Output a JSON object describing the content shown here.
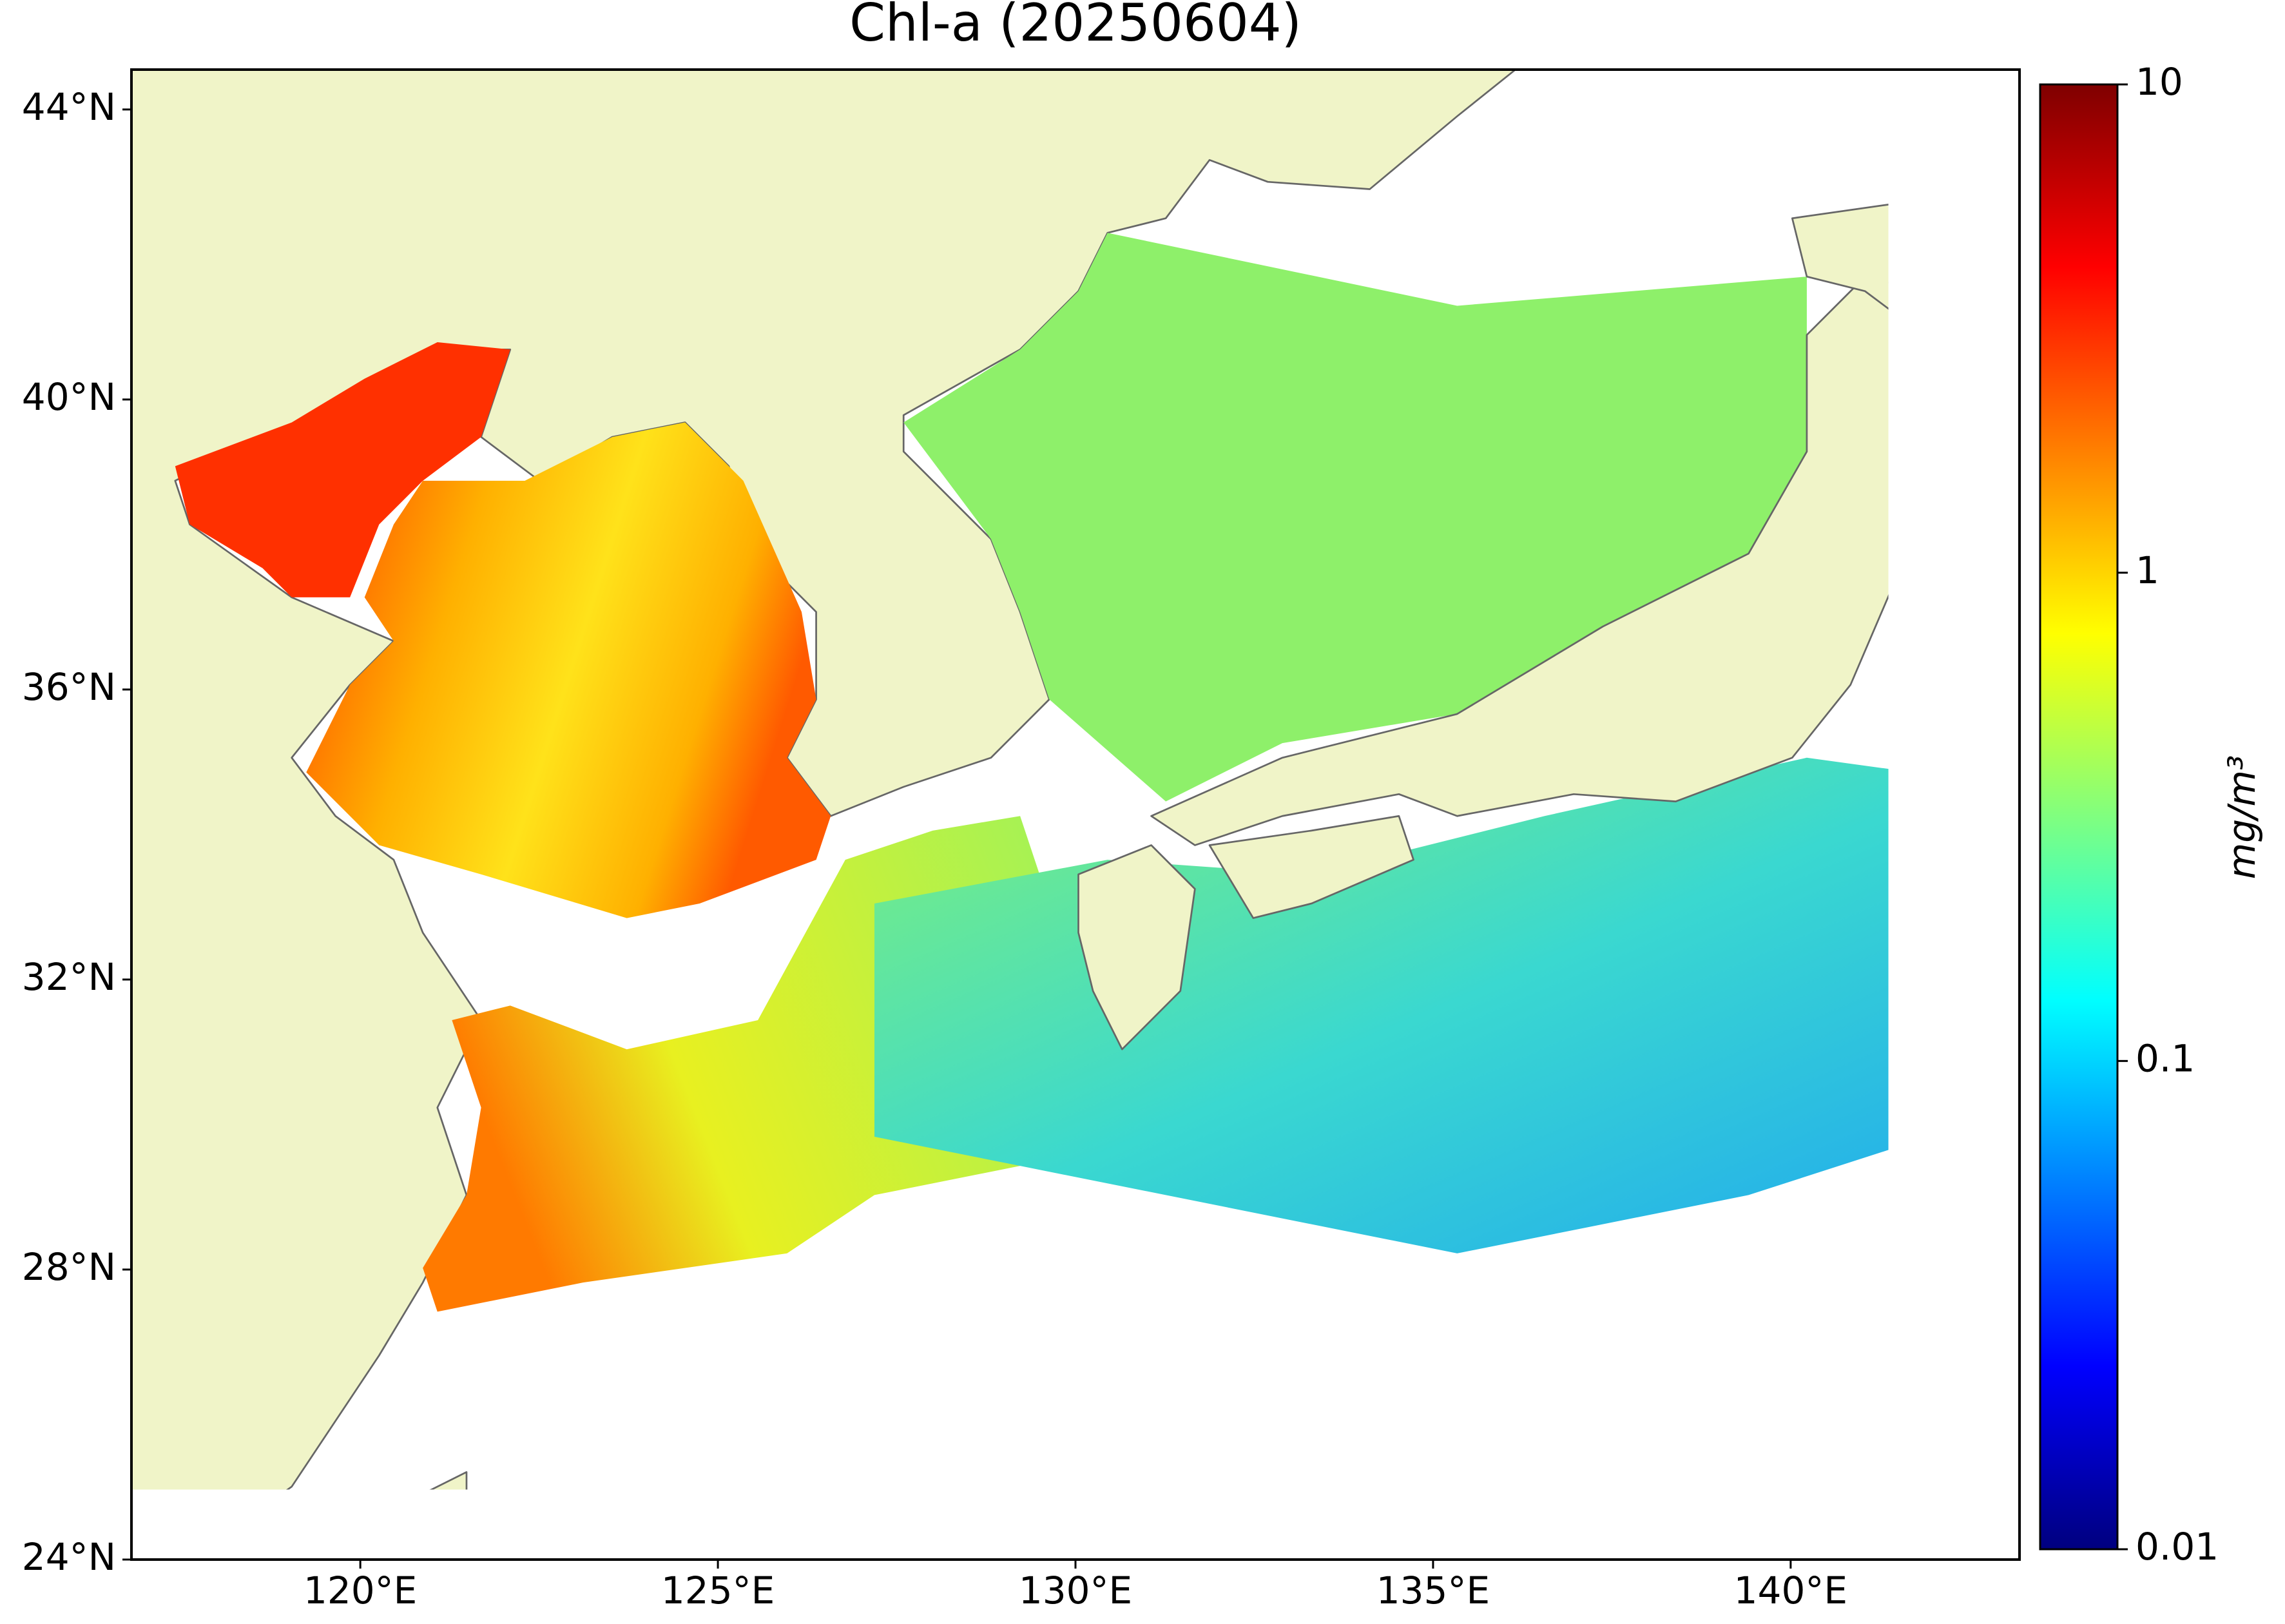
{
  "title": "Chl-a (20250604)",
  "map": {
    "xlim": [
      116.8,
      143.2
    ],
    "ylim": [
      24,
      44.55
    ],
    "xticks": [
      {
        "value": 120,
        "label": "120°E"
      },
      {
        "value": 125,
        "label": "125°E"
      },
      {
        "value": 130,
        "label": "130°E"
      },
      {
        "value": 135,
        "label": "135°E"
      },
      {
        "value": 140,
        "label": "140°E"
      }
    ],
    "yticks": [
      {
        "value": 24,
        "label": "24°N"
      },
      {
        "value": 28,
        "label": "28°N"
      },
      {
        "value": 32,
        "label": "32°N"
      },
      {
        "value": 36,
        "label": "36°N"
      },
      {
        "value": 40,
        "label": "40°N"
      },
      {
        "value": 44,
        "label": "44°N"
      }
    ]
  },
  "colorbar": {
    "label": "mg/m³",
    "clim": [
      0.01,
      10
    ],
    "log": true,
    "ticks": [
      0.01,
      0.1,
      1,
      10
    ]
  }
}
